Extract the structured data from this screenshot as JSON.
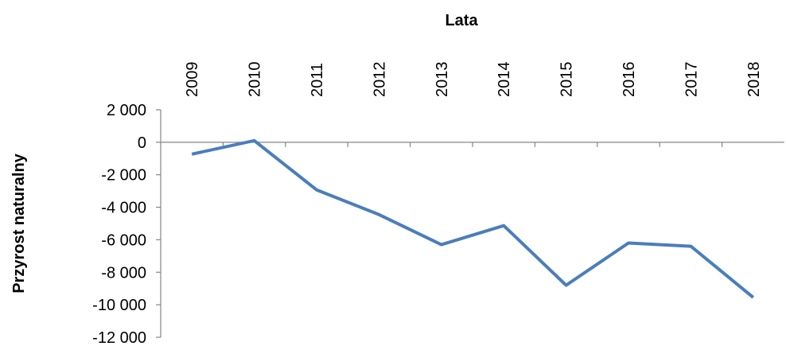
{
  "chart_data": {
    "type": "line",
    "x_label": "Lata",
    "y_label": "Przyrost naturalny",
    "categories": [
      "2009",
      "2010",
      "2011",
      "2012",
      "2013",
      "2014",
      "2015",
      "2016",
      "2017",
      "2018"
    ],
    "series": [
      {
        "name": "Przyrost naturalny",
        "color": "#4a7ebb",
        "values": [
          -730,
          100,
          -2930,
          -4450,
          -6300,
          -5130,
          -8800,
          -6200,
          -6400,
          -9550
        ]
      }
    ],
    "ylim": [
      -12000,
      2000
    ],
    "yticks": [
      {
        "value": -12000,
        "label": "-12 000"
      },
      {
        "value": -10000,
        "label": "-10 000"
      },
      {
        "value": -8000,
        "label": "-8 000"
      },
      {
        "value": -6000,
        "label": "-6 000"
      },
      {
        "value": -4000,
        "label": "-4 000"
      },
      {
        "value": -2000,
        "label": "-2 000"
      },
      0,
      {
        "value": 2000,
        "label": "2 000"
      }
    ],
    "grid": false
  }
}
